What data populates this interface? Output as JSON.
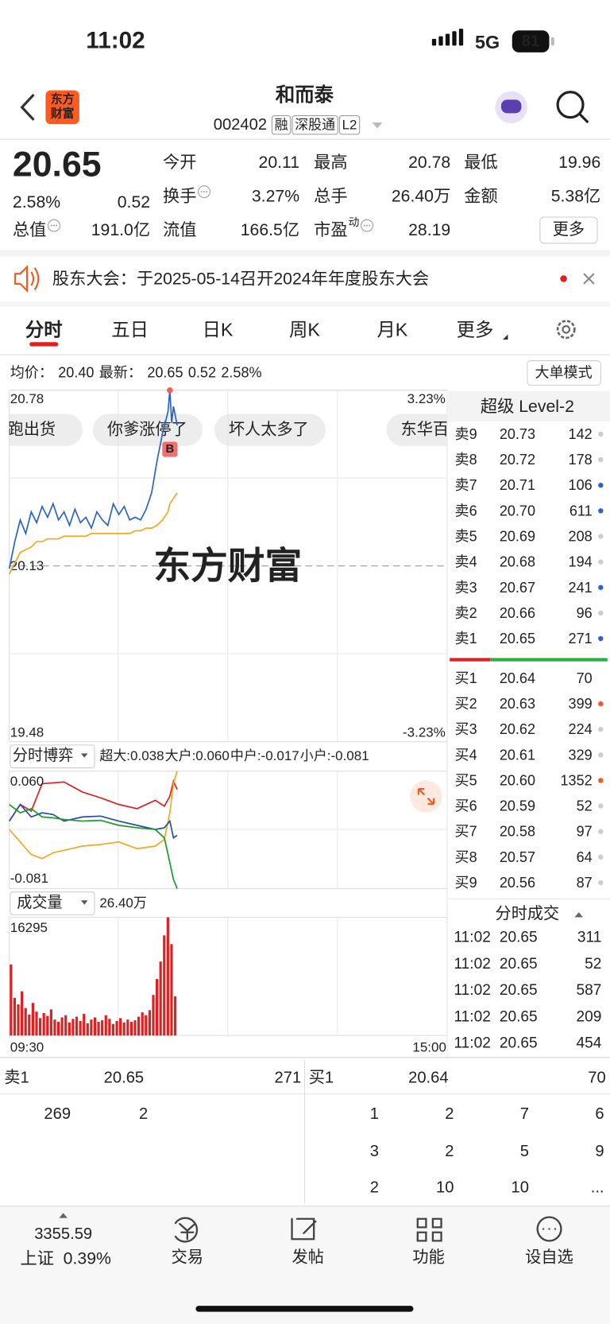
{
  "status_bar": {
    "time": "11:02",
    "network": "5G",
    "battery": "81"
  },
  "header": {
    "logo": [
      "东方",
      "财富"
    ],
    "name": "和而泰",
    "code": "002402",
    "tags": [
      "融",
      "深股通",
      "L2"
    ]
  },
  "quote": {
    "price": "20.65",
    "change_pct": "2.58%",
    "change": "0.52",
    "fields": [
      {
        "label": "今开",
        "value": "20.11",
        "color": "#1a9a2a"
      },
      {
        "label": "最高",
        "value": "20.78",
        "color": "#e02020"
      },
      {
        "label": "最低",
        "value": "19.96",
        "color": "#1a9a2a"
      },
      {
        "label": "换手",
        "value": "3.27%",
        "info": true
      },
      {
        "label": "总手",
        "value": "26.40万"
      },
      {
        "label": "金额",
        "value": "5.38亿"
      },
      {
        "label": "总值",
        "value": "191.0亿",
        "info": true
      },
      {
        "label": "流值",
        "value": "166.5亿"
      },
      {
        "label": "市盈",
        "sup": "动",
        "value": "28.19",
        "info": true
      }
    ],
    "more": "更多"
  },
  "notice": "股东大会：于2025-05-14召开2024年年度股东大会",
  "tabs": {
    "items": [
      "分时",
      "五日",
      "日K",
      "周K",
      "月K",
      "更多"
    ],
    "active": 0
  },
  "legend": {
    "avg_label": "均价：",
    "avg": "20.40",
    "last_label": "最新：",
    "last": "20.65",
    "change": "0.52",
    "pct": "2.58%",
    "mode": "大单模式"
  },
  "comments": [
    "快跑出货",
    "你爹涨停了",
    "坏人太多了",
    "东华百"
  ],
  "chart_data": [
    {
      "type": "line",
      "watermark": "东方财富",
      "marker": "B",
      "x": [
        0,
        3,
        6,
        9,
        12,
        15,
        18,
        21,
        24,
        27,
        30,
        33,
        36,
        39,
        42,
        45,
        48,
        51,
        54,
        57,
        60,
        63,
        66,
        69,
        72,
        75,
        78,
        81,
        84,
        87,
        88,
        89,
        90,
        92
      ],
      "series": [
        {
          "color": "#2a63c9",
          "values": [
            20.12,
            20.22,
            20.3,
            20.25,
            20.33,
            20.29,
            20.35,
            20.31,
            20.36,
            20.3,
            20.33,
            20.28,
            20.34,
            20.29,
            20.31,
            20.27,
            20.33,
            20.3,
            20.28,
            20.36,
            20.32,
            20.35,
            20.3,
            20.31,
            20.3,
            20.34,
            20.4,
            20.52,
            20.62,
            20.7,
            20.78,
            20.66,
            20.72,
            20.65
          ]
        },
        {
          "color": "#f5a623",
          "values": [
            20.1,
            20.14,
            20.18,
            20.19,
            20.2,
            20.22,
            20.22,
            20.23,
            20.23,
            20.23,
            20.24,
            20.24,
            20.24,
            20.24,
            20.24,
            20.25,
            20.25,
            20.25,
            20.25,
            20.25,
            20.25,
            20.25,
            20.25,
            20.26,
            20.26,
            20.27,
            20.27,
            20.28,
            20.3,
            20.33,
            20.36,
            20.37,
            20.38,
            20.4
          ]
        }
      ],
      "xlim": [
        0,
        240
      ],
      "ylim": [
        19.48,
        20.78
      ],
      "yticks": [
        20.78,
        20.13,
        19.48
      ],
      "y2lim": [
        -3.23,
        3.23
      ],
      "y2ticks": [
        {
          "value": 3.23,
          "label": "3.23%"
        },
        {
          "value": -3.23,
          "label": "-3.23%"
        }
      ]
    },
    {
      "type": "line",
      "title": "分时博弈",
      "x": [
        0,
        6,
        12,
        18,
        24,
        30,
        40,
        50,
        60,
        70,
        80,
        85,
        88,
        90,
        92
      ],
      "series": [
        {
          "name": "超大:0.038",
          "color": "#e02020",
          "values": [
            0.0,
            0.02,
            0.012,
            0.045,
            0.046,
            0.047,
            0.035,
            0.028,
            0.02,
            0.015,
            0.025,
            0.018,
            0.03,
            0.048,
            0.038
          ]
        },
        {
          "name": "大户:0.060",
          "color": "#f5a623",
          "values": [
            -0.01,
            -0.025,
            -0.04,
            -0.045,
            -0.038,
            -0.035,
            -0.03,
            -0.028,
            -0.025,
            -0.033,
            -0.03,
            -0.022,
            0.01,
            0.045,
            0.06
          ]
        },
        {
          "name": "中户:-0.017",
          "color": "#2a4f9e",
          "values": [
            0.0,
            0.02,
            0.005,
            0.01,
            0.008,
            0.0,
            0.005,
            0.006,
            0.0,
            -0.005,
            -0.01,
            -0.008,
            0.0,
            -0.02,
            -0.017
          ]
        },
        {
          "name": "小户:-0.081",
          "color": "#1a9a2a",
          "values": [
            0.02,
            0.01,
            0.015,
            0.005,
            0.004,
            0.002,
            0.0,
            0.001,
            -0.005,
            -0.008,
            -0.01,
            -0.02,
            -0.05,
            -0.07,
            -0.081
          ]
        }
      ],
      "xlim": [
        0,
        240
      ],
      "ylim": [
        -0.081,
        0.06
      ],
      "yticks": [
        {
          "value": 0.06,
          "label": "0.060"
        },
        -0.081
      ]
    },
    {
      "type": "bar",
      "title": "成交量",
      "total": "26.40万",
      "color": "#e02020",
      "x": [
        0,
        2,
        4,
        6,
        8,
        10,
        12,
        14,
        16,
        18,
        20,
        22,
        24,
        26,
        28,
        30,
        32,
        34,
        36,
        38,
        40,
        42,
        44,
        46,
        48,
        50,
        52,
        54,
        56,
        58,
        60,
        62,
        64,
        66,
        68,
        70,
        72,
        74,
        76,
        78,
        80,
        82,
        84,
        86,
        88,
        90
      ],
      "values": [
        9800,
        5200,
        4300,
        6100,
        3800,
        2900,
        4500,
        3300,
        2400,
        3100,
        2700,
        3600,
        2200,
        1900,
        2500,
        2800,
        1800,
        2300,
        2600,
        2000,
        3000,
        1700,
        2200,
        2500,
        1900,
        2100,
        2800,
        2300,
        1600,
        2000,
        2400,
        1800,
        2200,
        1900,
        2100,
        2600,
        3200,
        2800,
        3500,
        5600,
        7800,
        10200,
        13800,
        16295,
        12600,
        5400
      ],
      "xlim": [
        0,
        240
      ],
      "ylim": [
        0,
        16295
      ],
      "yticks": [
        16295
      ],
      "xticks": [
        {
          "value": 0,
          "label": "09:30"
        },
        {
          "value": 240,
          "label": "15:00"
        }
      ]
    }
  ],
  "level2": {
    "title": "超级 Level-2",
    "asks": [
      {
        "label": "卖9",
        "price": "20.73",
        "qty": "142",
        "dot": "#cccccc"
      },
      {
        "label": "卖8",
        "price": "20.72",
        "qty": "178",
        "dot": "#cccccc"
      },
      {
        "label": "卖7",
        "price": "20.71",
        "qty": "106",
        "dot": "#2a63c9"
      },
      {
        "label": "卖6",
        "price": "20.70",
        "qty": "611",
        "dot": "#2a63c9"
      },
      {
        "label": "卖5",
        "price": "20.69",
        "qty": "208",
        "dot": "#cccccc"
      },
      {
        "label": "卖4",
        "price": "20.68",
        "qty": "194",
        "dot": "#cccccc"
      },
      {
        "label": "卖3",
        "price": "20.67",
        "qty": "241",
        "dot": "#2a63c9"
      },
      {
        "label": "卖2",
        "price": "20.66",
        "qty": "96",
        "dot": "#cccccc"
      },
      {
        "label": "卖1",
        "price": "20.65",
        "qty": "271",
        "dot": "#2a63c9"
      }
    ],
    "bids": [
      {
        "label": "买1",
        "price": "20.64",
        "qty": "70",
        "dot": null
      },
      {
        "label": "买2",
        "price": "20.63",
        "qty": "399",
        "dot": "#f05a1e"
      },
      {
        "label": "买3",
        "price": "20.62",
        "qty": "224",
        "dot": "#cccccc"
      },
      {
        "label": "买4",
        "price": "20.61",
        "qty": "329",
        "dot": "#cccccc"
      },
      {
        "label": "买5",
        "price": "20.60",
        "qty": "1352",
        "dot": "#f05a1e"
      },
      {
        "label": "买6",
        "price": "20.59",
        "qty": "52",
        "dot": "#cccccc"
      },
      {
        "label": "买7",
        "price": "20.58",
        "qty": "97",
        "dot": "#cccccc"
      },
      {
        "label": "买8",
        "price": "20.57",
        "qty": "64",
        "dot": "#cccccc"
      },
      {
        "label": "买9",
        "price": "20.56",
        "qty": "87",
        "dot": "#cccccc"
      }
    ]
  },
  "trades": {
    "title": "分时成交",
    "rows": [
      {
        "time": "11:02",
        "price": "20.65",
        "qty": "311",
        "color": "#e02020"
      },
      {
        "time": "11:02",
        "price": "20.65",
        "qty": "52",
        "color": "#e02020"
      },
      {
        "time": "11:02",
        "price": "20.65",
        "qty": "587",
        "color": "#1a9a2a"
      },
      {
        "time": "11:02",
        "price": "20.65",
        "qty": "209",
        "color": "#1a9a2a"
      },
      {
        "time": "11:02",
        "price": "20.65",
        "qty": "454",
        "color": "#1a9a2a"
      }
    ]
  },
  "depth": {
    "ask": {
      "label": "卖1",
      "price": "20.65",
      "qty": "271"
    },
    "bid": {
      "label": "买1",
      "price": "20.64",
      "qty": "70"
    },
    "ask_queue": [
      "269",
      "2"
    ],
    "bid_queue": [
      "1",
      "2",
      "7",
      "6",
      "3",
      "2",
      "5",
      "9",
      "2",
      "10",
      "10",
      "..."
    ]
  },
  "bottom_nav": {
    "index": {
      "value": "3355.59",
      "name": "上证",
      "pct": "0.39%"
    },
    "items": [
      "交易",
      "发帖",
      "功能",
      "设自选"
    ]
  }
}
